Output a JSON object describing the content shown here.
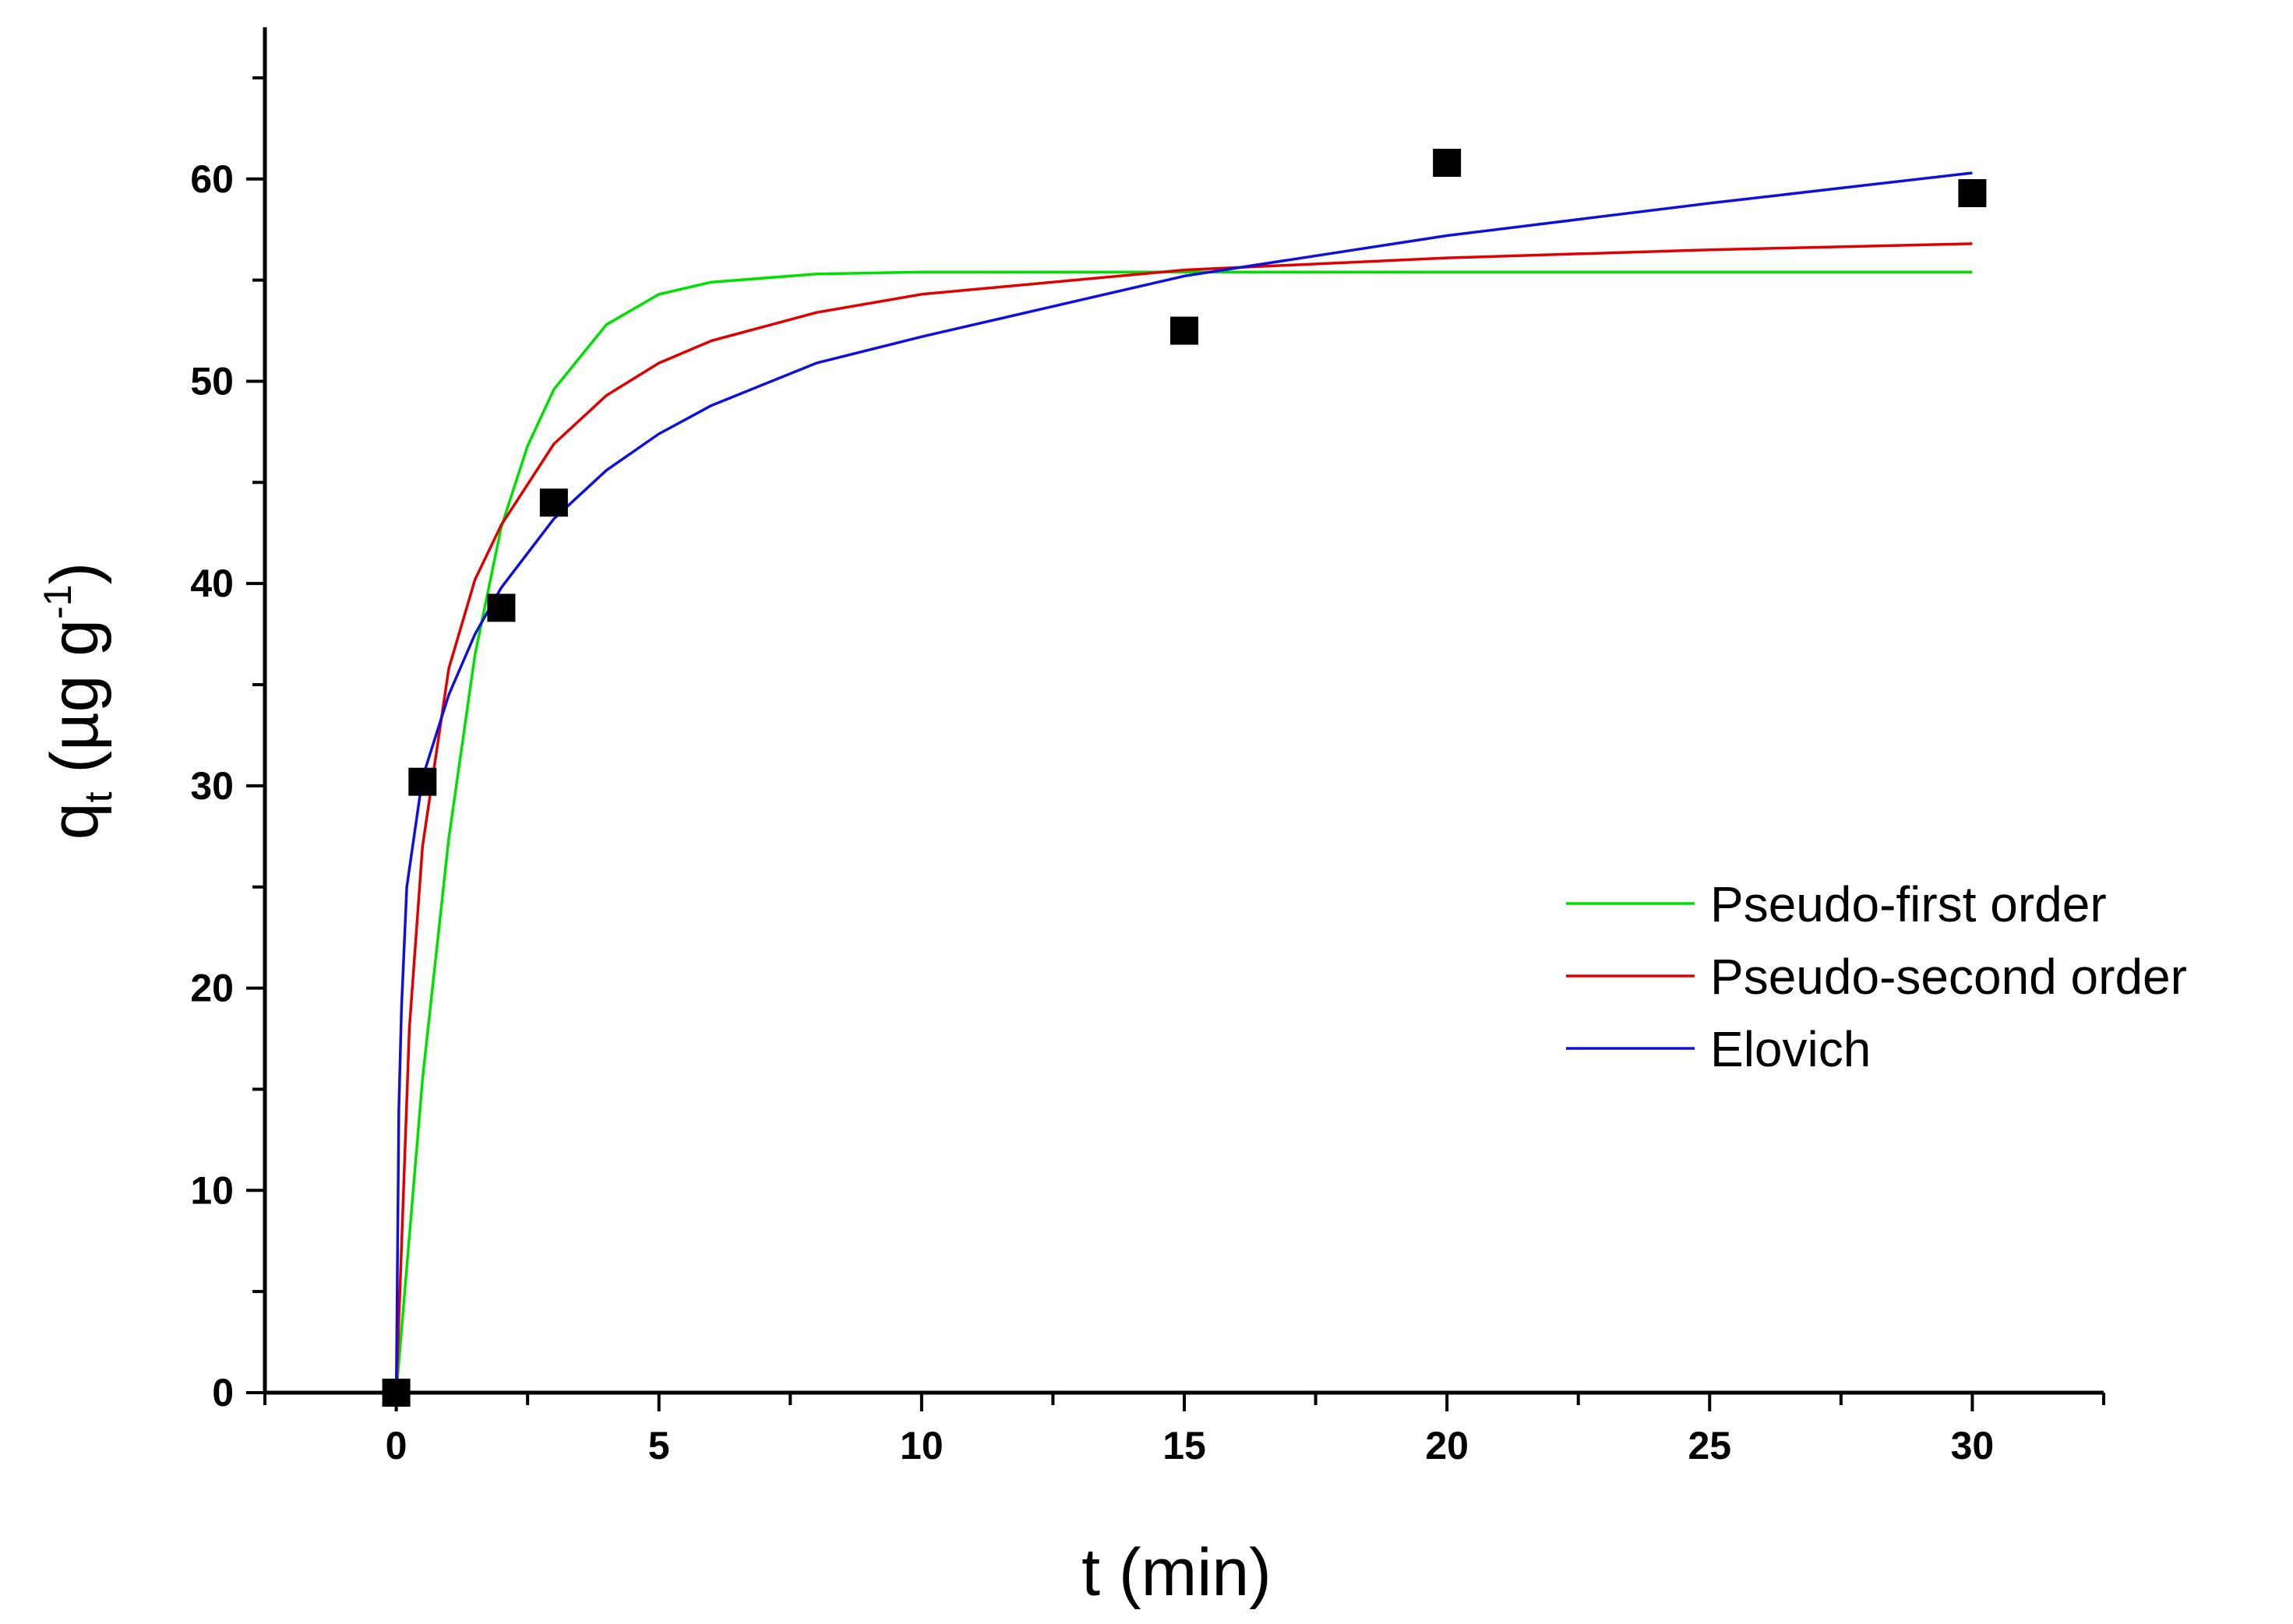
{
  "chart_data": {
    "type": "scatter",
    "title": "",
    "xlabel": "t (min)",
    "ylabel": {
      "main": "q",
      "subscript": "t",
      "unit_open": " (µg g",
      "unit_sup": "-1",
      "unit_close": ")"
    },
    "xlim": [
      -2.5,
      32.5
    ],
    "ylim": [
      0,
      67.5
    ],
    "x_ticks": [
      0,
      5,
      10,
      15,
      20,
      25,
      30
    ],
    "y_ticks": [
      0,
      10,
      20,
      30,
      40,
      50,
      60
    ],
    "grid": false,
    "legend_position": "right",
    "points": {
      "marker": "square",
      "color": "#000000",
      "x": [
        0,
        0.5,
        2,
        3,
        15,
        20,
        30
      ],
      "y": [
        0,
        30.2,
        38.8,
        44.0,
        52.5,
        60.8,
        59.3
      ]
    },
    "series": [
      {
        "name": "Pseudo-first order",
        "color": "#00e000",
        "x": [
          0,
          0.5,
          1,
          1.5,
          2,
          2.5,
          3,
          4,
          5,
          6,
          8,
          10,
          15,
          20,
          25,
          30
        ],
        "y": [
          0,
          15.5,
          27.4,
          36.5,
          42.8,
          46.8,
          49.6,
          52.8,
          54.3,
          54.9,
          55.3,
          55.4,
          55.4,
          55.4,
          55.4,
          55.4
        ]
      },
      {
        "name": "Pseudo-second order",
        "color": "#e00000",
        "x": [
          0,
          0.25,
          0.5,
          1,
          1.5,
          2,
          3,
          4,
          5,
          6,
          8,
          10,
          15,
          20,
          25,
          30
        ],
        "y": [
          0,
          18.0,
          27.0,
          35.8,
          40.2,
          42.9,
          46.9,
          49.3,
          50.9,
          52.0,
          53.4,
          54.3,
          55.5,
          56.1,
          56.5,
          56.8
        ]
      },
      {
        "name": "Elovich",
        "color": "#1010dd",
        "x": [
          0,
          0.05,
          0.1,
          0.2,
          0.5,
          1,
          1.5,
          2,
          3,
          4,
          5,
          6,
          8,
          10,
          15,
          20,
          25,
          30
        ],
        "y": [
          0,
          14.0,
          19.0,
          25.0,
          30.4,
          34.5,
          37.5,
          39.8,
          43.2,
          45.6,
          47.4,
          48.8,
          50.9,
          52.2,
          55.2,
          57.2,
          58.8,
          60.3
        ]
      }
    ]
  }
}
